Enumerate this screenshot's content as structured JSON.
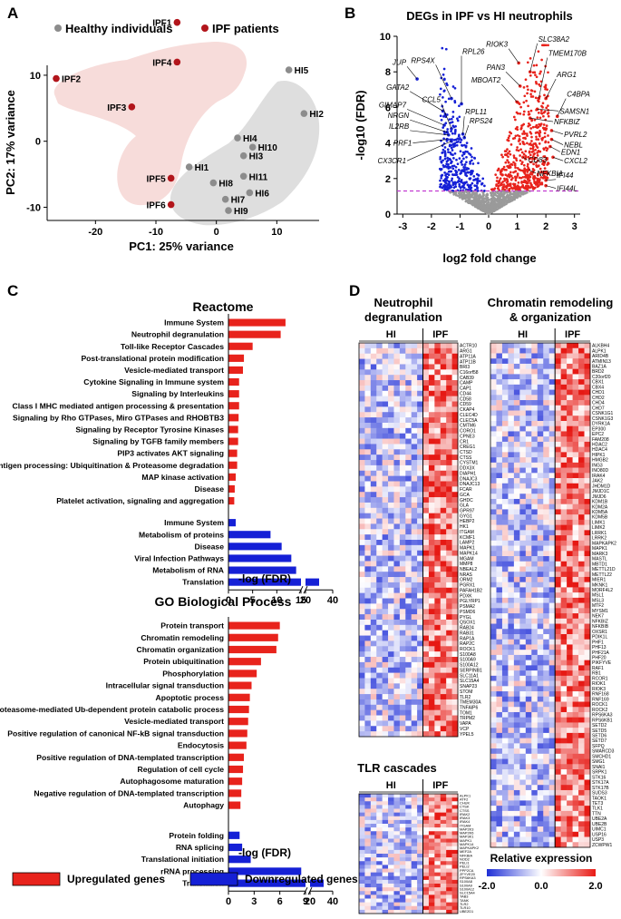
{
  "colors": {
    "healthy": "#8c8c8c",
    "ipf": "#b2151b",
    "up": "#e8231c",
    "down": "#1520d6",
    "ipf_bg": "#f7dcda",
    "hi_bg": "#dedede",
    "threshold": "#c23bd1"
  },
  "panel_a": {
    "label": "A",
    "legend_healthy": "Healthy individuals",
    "legend_ipf": "IPF patients",
    "xlabel": "PC1: 25% variance",
    "ylabel": "PC2: 17% variance",
    "xticks": [
      "-20",
      "-10",
      "0",
      "10"
    ],
    "yticks": [
      "10",
      "0",
      "-10"
    ]
  },
  "panel_b": {
    "label": "B",
    "title": "DEGs in IPF vs HI neutrophils",
    "xlabel": "log2 fold change",
    "ylabel": "-log10 (FDR)",
    "xticks": [
      "-3",
      "-2",
      "-1",
      "0",
      "1",
      "2",
      "3"
    ],
    "yticks": [
      "0",
      "2",
      "4",
      "6",
      "8",
      "10"
    ],
    "down_genes": [
      "JUP",
      "RPS4X",
      "RPL26",
      "GATA2",
      "GIMAP7",
      "CCL5",
      "NRGN",
      "IL2RB",
      "RPL11",
      "RPS24",
      "PRF1",
      "CX3CR1"
    ],
    "up_genes": [
      "RIOK3",
      "SLC38A2",
      "TMEM170B",
      "PAN3",
      "ARG1",
      "MBOAT2",
      "C4BPA",
      "SAMSN1",
      "NFKBIZ",
      "PVRL2",
      "NEBL",
      "EDN1",
      "CD83",
      "CXCL2",
      "NFKBIA",
      "IFI44",
      "IFI44L"
    ]
  },
  "panel_c": {
    "label": "C",
    "reactome_title": "Reactome",
    "go_title": "GO Biological Process",
    "xlabel": "-log (FDR)",
    "legend_up": "Upregulated genes",
    "legend_down": "Downregulated genes",
    "reactome_ticks": [
      "0",
      "5",
      "10",
      "15",
      "20",
      "40"
    ],
    "go_ticks": [
      "0",
      "3",
      "6",
      "9",
      "20",
      "40"
    ]
  },
  "panel_d": {
    "label": "D",
    "title_neut": "Neutrophil degranulation",
    "title_chrom": "Chromatin remodeling & organization",
    "title_tlr": "TLR cascades",
    "hi": "HI",
    "ipf": "IPF",
    "legend_title": "Relative expression",
    "legend_min": "-2.0",
    "legend_mid": "0.0",
    "legend_max": "2.0",
    "neut_genes": [
      "ACTR10",
      "ARG1",
      "ATP11A",
      "ATP11B",
      "BRI3",
      "C16orf58",
      "CAB39",
      "CAMP",
      "CAP1",
      "CD44",
      "CD58",
      "CD59",
      "CKAP4",
      "CLEC4D",
      "CLEC5A",
      "CMTM6",
      "CORO1",
      "CPNE3",
      "CR1",
      "CREG1",
      "CTSD",
      "CTSS",
      "CYSTM1",
      "DDX3X",
      "DIAPH1",
      "DNAJC3",
      "DNAJC13",
      "FCAR",
      "GCA",
      "GHDC",
      "GLA",
      "GPR97",
      "GYG1",
      "HEBP2",
      "HK1",
      "ITGAM",
      "KCMF1",
      "LAMP2",
      "MAPK1",
      "MAPK14",
      "MGAM",
      "MMP8",
      "NBEAL2",
      "NRAS",
      "ORM2",
      "PGRX1",
      "PAFAH1B2",
      "PDXK",
      "PGLYRP1",
      "PSMA2",
      "PSMD6",
      "PYGL",
      "QSOX1",
      "RAB24",
      "RAB31",
      "RAP1A",
      "RAP2C",
      "ROCK1",
      "S100A8",
      "S100A9",
      "S100A12",
      "SERPINB1",
      "SLC11A1",
      "SLC15A4",
      "SNAP23",
      "STOM",
      "TLR2",
      "TMEM30A",
      "TNFAIP6",
      "TOM1",
      "TRPM2",
      "VAPA",
      "VCP",
      "YPEL5"
    ],
    "chrom_genes": [
      "ALKBH4",
      "ALPK1",
      "ARID4B",
      "ATMIN13",
      "BAZ1A",
      "BRD2",
      "C20orf20",
      "CBX1",
      "CBX4",
      "CHD1",
      "CHD2",
      "CHD4",
      "CHD7",
      "CSNK1G1",
      "CSNK1G3",
      "DYRK1A",
      "EP300",
      "EPC2",
      "FAM208",
      "HDAC2",
      "HDAC4",
      "HIPK1",
      "HMGB2",
      "ING3",
      "INO80D",
      "IRAK4",
      "JAK2",
      "JHDM1D",
      "JMJD1C",
      "JMJD6",
      "KDM1B",
      "KDM2A",
      "KDM5A",
      "KDM5B",
      "LIMK1",
      "LIMK2",
      "LRRK1",
      "LRRK2",
      "MAPKAPK2",
      "MAPK1",
      "MARK3",
      "MASTL",
      "MBTD1",
      "METTL21D",
      "METTL22",
      "MIER1",
      "MKNK1",
      "MORF4L2",
      "MSL1",
      "MSL3",
      "MTF2",
      "MYSM1",
      "NEK7",
      "NFKBIZ",
      "NFKBIB",
      "OXSR1",
      "PDIK1L",
      "PHF1",
      "PHF13",
      "PHF21A",
      "PHF20",
      "PIKFYVE",
      "RAF1",
      "RB1",
      "RCOR1",
      "RIOK1",
      "RIOK3",
      "RNF168",
      "RNF169",
      "ROCK1",
      "ROCK2",
      "RPS6KA3",
      "RPS6KB1",
      "SETD2",
      "SETD5",
      "SETD6",
      "SETD7",
      "SFPQ",
      "SMARCD3",
      "SMCHD1",
      "SMG1",
      "SNAI1",
      "SRPK1",
      "STK16",
      "STK17A",
      "STK17B",
      "SUDS3",
      "TAOK1",
      "TET3",
      "TLK1",
      "TTN",
      "UBE2A",
      "UBE2B",
      "UIMC1",
      "USP16",
      "USP3",
      "ZCWPW1"
    ],
    "tlr_genes": [
      "ALPK1",
      "ATF2",
      "CHUK",
      "CTSK",
      "CTSS",
      "IRAK2",
      "IRAK3",
      "IRAK4",
      "ITGAM",
      "MAP2K3",
      "MAP2K6",
      "MAP3K1",
      "MAPK1",
      "MAPK14",
      "MAPKAPK2",
      "MEF2A",
      "NFKBIA",
      "NOD2",
      "PELI1",
      "PELI2",
      "PPP2CA",
      "ZFYVE20",
      "RPS6KA3",
      "S100A8",
      "S100A9",
      "S100A12",
      "SLC15A4",
      "TAB3",
      "TANK",
      "TLR2",
      "TLR10",
      "UBE2D1"
    ]
  },
  "chart_data": [
    {
      "id": "pca",
      "type": "scatter",
      "title": "",
      "xlabel": "PC1: 25% variance",
      "ylabel": "PC2: 17% variance",
      "xlim": [
        -28,
        17
      ],
      "ylim": [
        -12,
        17
      ],
      "series": [
        {
          "name": "Healthy individuals",
          "points": [
            {
              "label": "HI1",
              "x": -4.5,
              "y": -3.9
            },
            {
              "label": "HI2",
              "x": 14.5,
              "y": 4.2
            },
            {
              "label": "HI3",
              "x": 4.5,
              "y": -2.2
            },
            {
              "label": "HI4",
              "x": 3.5,
              "y": 0.5
            },
            {
              "label": "HI5",
              "x": 12,
              "y": 10.8
            },
            {
              "label": "HI6",
              "x": 5.5,
              "y": -7.8
            },
            {
              "label": "HI7",
              "x": 1.5,
              "y": -8.8
            },
            {
              "label": "HI8",
              "x": -0.5,
              "y": -6.3
            },
            {
              "label": "HI9",
              "x": 2,
              "y": -10.5
            },
            {
              "label": "HI10",
              "x": 6,
              "y": -0.9
            },
            {
              "label": "HI11",
              "x": 4.5,
              "y": -5.3
            }
          ]
        },
        {
          "name": "IPF patients",
          "points": [
            {
              "label": "IPF1",
              "x": -6.5,
              "y": 18
            },
            {
              "label": "IPF2",
              "x": -26.5,
              "y": 9.5
            },
            {
              "label": "IPF3",
              "x": -14,
              "y": 5.2
            },
            {
              "label": "IPF4",
              "x": -6.5,
              "y": 12
            },
            {
              "label": "IPF5",
              "x": -7.5,
              "y": -5.6
            },
            {
              "label": "IPF6",
              "x": -7.5,
              "y": -9.6
            }
          ]
        }
      ]
    },
    {
      "id": "volcano",
      "type": "scatter",
      "title": "DEGs in IPF vs HI neutrophils",
      "xlabel": "log2 fold change",
      "ylabel": "-log10 (FDR)",
      "xlim": [
        -3.2,
        3.2
      ],
      "ylim": [
        0,
        10
      ],
      "fdr_threshold": 1.3,
      "labeled_points": [
        {
          "label": "JUP",
          "x": -2.5,
          "y": 7.6,
          "dir": "down"
        },
        {
          "label": "RPS4X",
          "x": -1.3,
          "y": 6.5,
          "dir": "down"
        },
        {
          "label": "RPL26",
          "x": -0.95,
          "y": 6.2,
          "dir": "down"
        },
        {
          "label": "GATA2",
          "x": -1.6,
          "y": 5.8,
          "dir": "down"
        },
        {
          "label": "GIMAP7",
          "x": -1.55,
          "y": 5.0,
          "dir": "down"
        },
        {
          "label": "CCL5",
          "x": -1.3,
          "y": 4.8,
          "dir": "down"
        },
        {
          "label": "NRGN",
          "x": -1.45,
          "y": 4.6,
          "dir": "down"
        },
        {
          "label": "IL2RB",
          "x": -1.4,
          "y": 4.45,
          "dir": "down"
        },
        {
          "label": "RPL11",
          "x": -0.9,
          "y": 4.5,
          "dir": "down"
        },
        {
          "label": "RPS24",
          "x": -0.85,
          "y": 4.3,
          "dir": "down"
        },
        {
          "label": "PRF1",
          "x": -1.45,
          "y": 4.2,
          "dir": "down"
        },
        {
          "label": "CX3CR1",
          "x": -1.3,
          "y": 4.1,
          "dir": "down"
        },
        {
          "label": "RIOK3",
          "x": 1.05,
          "y": 8.5,
          "dir": "up"
        },
        {
          "label": "SLC38A2",
          "x": 1.45,
          "y": 8.0,
          "dir": "up"
        },
        {
          "label": "TMEM170B",
          "x": 1.75,
          "y": 6.5,
          "dir": "up"
        },
        {
          "label": "PAN3",
          "x": 1.1,
          "y": 7.2,
          "dir": "up"
        },
        {
          "label": "ARG1",
          "x": 2.0,
          "y": 6.5,
          "dir": "up"
        },
        {
          "label": "MBOAT2",
          "x": 1.0,
          "y": 6.3,
          "dir": "up"
        },
        {
          "label": "C4BPA",
          "x": 2.4,
          "y": 5.5,
          "dir": "up"
        },
        {
          "label": "SAMSN1",
          "x": 1.7,
          "y": 5.9,
          "dir": "up"
        },
        {
          "label": "NFKBIZ",
          "x": 1.45,
          "y": 5.4,
          "dir": "up"
        },
        {
          "label": "PVRL2",
          "x": 2.2,
          "y": 4.7,
          "dir": "up"
        },
        {
          "label": "NEBL",
          "x": 2.2,
          "y": 4.2,
          "dir": "up"
        },
        {
          "label": "EDN1",
          "x": 2.15,
          "y": 3.8,
          "dir": "up"
        },
        {
          "label": "CD83",
          "x": 1.2,
          "y": 3.2,
          "dir": "up"
        },
        {
          "label": "CXCL2",
          "x": 2.25,
          "y": 3.2,
          "dir": "up"
        },
        {
          "label": "NFKBIA",
          "x": 1.4,
          "y": 2.5,
          "dir": "up"
        },
        {
          "label": "IFI44",
          "x": 2.0,
          "y": 1.9,
          "dir": "up"
        },
        {
          "label": "IFI44L",
          "x": 2.0,
          "y": 1.6,
          "dir": "up"
        }
      ]
    },
    {
      "id": "reactome",
      "type": "bar",
      "orientation": "horizontal",
      "title": "Reactome",
      "xlabel": "-log (FDR)",
      "axis_break": [
        15,
        20
      ],
      "xlim": [
        0,
        40
      ],
      "series": [
        {
          "name": "Upregulated genes",
          "categories": [
            "Immune System",
            "Neutrophil degranulation",
            "Toll-like Receptor Cascades",
            "Post-translational protein modification",
            "Vesicle-mediated transport",
            "Cytokine Signaling in Immune system",
            "Signaling by Interleukins",
            "Class I MHC mediated antigen processing & presentation",
            "Signaling by Rho GTPases, Miro GTPases and RHOBTB3",
            "Signaling by Receptor Tyrosine Kinases",
            "Signaling by TGFB family members",
            "PIP3 activates AKT signaling",
            "Antigen processing: Ubiquitination & Proteasome degradation",
            "MAP kinase activation",
            "Disease",
            "Platelet activation, signaling and aggregation"
          ],
          "values": [
            11.8,
            10.8,
            5.0,
            3.2,
            3.0,
            2.2,
            2.2,
            2.2,
            2.1,
            2.0,
            2.0,
            1.8,
            1.8,
            1.5,
            1.3,
            1.2
          ]
        },
        {
          "name": "Downregulated genes",
          "categories": [
            "Immune System",
            "Metabolism of proteins",
            "Disease",
            "Viral Infection Pathways",
            "Metabolism of RNA",
            "Translation"
          ],
          "values": [
            1.5,
            8.7,
            11.0,
            13.0,
            14.0,
            30.0
          ]
        }
      ]
    },
    {
      "id": "go_bp",
      "type": "bar",
      "orientation": "horizontal",
      "title": "GO Biological Process",
      "xlabel": "-log (FDR)",
      "axis_break": [
        9,
        20
      ],
      "xlim": [
        0,
        40
      ],
      "series": [
        {
          "name": "Upregulated genes",
          "categories": [
            "Protein transport",
            "Chromatin remodeling",
            "Chromatin organization",
            "Protein ubiquitination",
            "Phosphorylation",
            "Intracellular signal transduction",
            "Apoptotic process",
            "Proteasome-mediated Ub-dependent protein catabolic process",
            "Vesicle-mediated transport",
            "Positive regulation of canonical NF-kB signal transduction",
            "Endocytosis",
            "Positive regulation of DNA-templated transcription",
            "Regulation of cell cycle",
            "Autophagosome maturation",
            "Negative regulation of DNA-templated transcription",
            "Autophagy"
          ],
          "values": [
            6.0,
            5.8,
            5.6,
            3.8,
            3.3,
            2.7,
            2.5,
            2.4,
            2.3,
            2.2,
            2.1,
            1.8,
            1.7,
            1.6,
            1.5,
            1.4
          ]
        },
        {
          "name": "Downregulated genes",
          "categories": [
            "Protein folding",
            "RNA splicing",
            "Translational initiation",
            "rRNA processing",
            "Translation"
          ],
          "values": [
            1.3,
            1.6,
            2.6,
            8.5,
            32.0
          ]
        }
      ]
    }
  ]
}
